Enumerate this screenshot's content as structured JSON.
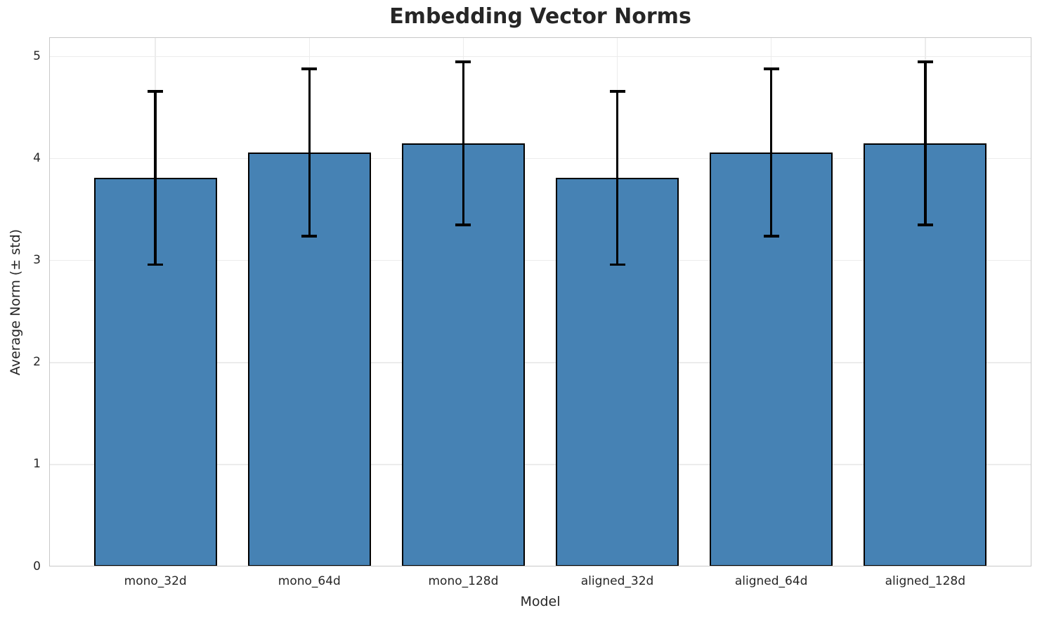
{
  "chart_data": {
    "type": "bar",
    "title": "Embedding Vector Norms",
    "xlabel": "Model",
    "ylabel": "Average Norm (± std)",
    "categories": [
      "mono_32d",
      "mono_64d",
      "mono_128d",
      "aligned_32d",
      "aligned_64d",
      "aligned_128d"
    ],
    "series": [
      {
        "name": "Average Norm",
        "values": [
          3.81,
          4.06,
          4.15,
          3.81,
          4.06,
          4.15
        ],
        "errors": [
          0.85,
          0.82,
          0.8,
          0.85,
          0.82,
          0.8
        ]
      }
    ],
    "error_bar_ranges": [
      [
        2.96,
        4.66
      ],
      [
        3.24,
        4.88
      ],
      [
        3.35,
        4.95
      ],
      [
        2.96,
        4.66
      ],
      [
        3.24,
        4.88
      ],
      [
        3.35,
        4.95
      ]
    ],
    "yticks": [
      0,
      1,
      2,
      3,
      4,
      5
    ],
    "ylim": [
      0,
      5.19
    ],
    "xlim": [
      -0.69,
      5.69
    ],
    "bar_width": 0.8,
    "grid": true,
    "legend": "none",
    "colors": {
      "bar_fill": "#4682b4",
      "bar_edge": "#000000",
      "error_bar": "#000000",
      "gridline": "#ececec",
      "spine": "#c8c8c8",
      "text": "#262626"
    }
  }
}
